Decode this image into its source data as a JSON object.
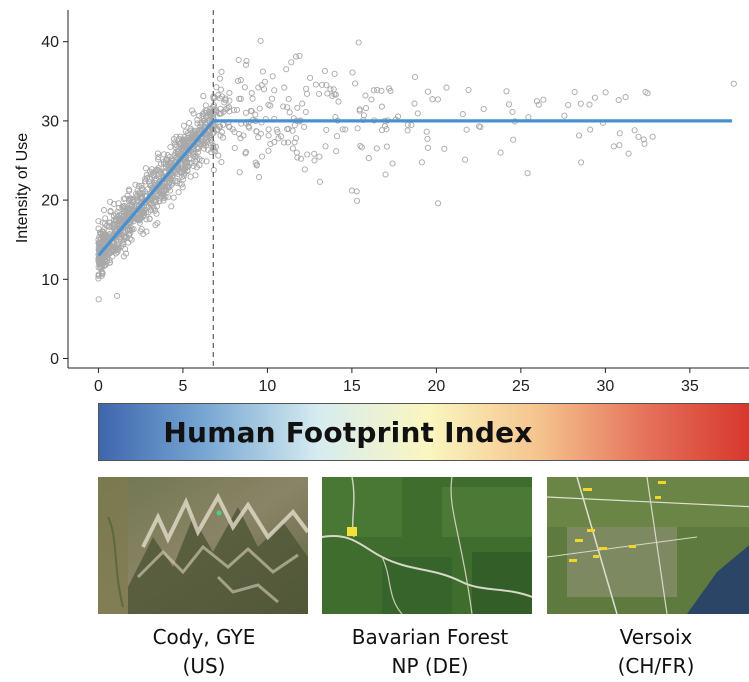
{
  "chart_data": {
    "type": "scatter",
    "ylabel": "Intensity of Use",
    "xlabel": "",
    "xlim": [
      -1.8,
      38.5
    ],
    "ylim": [
      -1.2,
      44
    ],
    "x_ticks": [
      0,
      5,
      10,
      15,
      20,
      25,
      30,
      35
    ],
    "y_ticks": [
      0,
      10,
      20,
      30,
      40
    ],
    "threshold_x": 6.8,
    "fit_line": {
      "x": [
        0,
        6.8,
        37.5
      ],
      "y": [
        13,
        30,
        30
      ]
    },
    "highlighted_points": [
      {
        "x": 1.1,
        "y": 7.9
      },
      {
        "x": 9.6,
        "y": 40.1
      },
      {
        "x": 15.4,
        "y": 39.9
      },
      {
        "x": 11.9,
        "y": 38.2
      },
      {
        "x": 37.6,
        "y": 34.7
      },
      {
        "x": 20.1,
        "y": 19.6
      },
      {
        "x": 25.4,
        "y": 23.4
      },
      {
        "x": 15.0,
        "y": 21.2
      },
      {
        "x": 15.3,
        "y": 19.9
      },
      {
        "x": 27.8,
        "y": 32.0
      },
      {
        "x": 29.1,
        "y": 28.9
      },
      {
        "x": 32.5,
        "y": 33.5
      },
      {
        "x": 31.2,
        "y": 33.0
      },
      {
        "x": 21.9,
        "y": 33.9
      },
      {
        "x": 19.5,
        "y": 26.6
      },
      {
        "x": 20.6,
        "y": 34.2
      },
      {
        "x": 22.8,
        "y": 31.5
      },
      {
        "x": 24.3,
        "y": 32.1
      },
      {
        "x": 17.2,
        "y": 34.1
      },
      {
        "x": 13.4,
        "y": 36.3
      },
      {
        "x": 23.8,
        "y": 26.0
      },
      {
        "x": 32.8,
        "y": 28.0
      },
      {
        "x": 16.0,
        "y": 25.3
      },
      {
        "x": 21.7,
        "y": 25.1
      },
      {
        "x": 8.3,
        "y": 37.7
      },
      {
        "x": 9.5,
        "y": 22.9
      },
      {
        "x": 8.7,
        "y": 25.9
      }
    ],
    "point_color": "#a8a8a8",
    "line_color": "#4a90cf",
    "threshold_color": "#666666",
    "grid": false
  },
  "colorbar": {
    "label": "Human Footprint Index",
    "colors": [
      "#3d66ad",
      "#7aa9d4",
      "#d6ecf0",
      "#fbf6bf",
      "#f5c48e",
      "#e5715a",
      "#d73229"
    ]
  },
  "sites": [
    {
      "line1": "Cody, GYE",
      "line2": "(US)"
    },
    {
      "line1": "Bavarian Forest",
      "line2": "NP (DE)"
    },
    {
      "line1": "Versoix",
      "line2": "(CH/FR)"
    }
  ]
}
